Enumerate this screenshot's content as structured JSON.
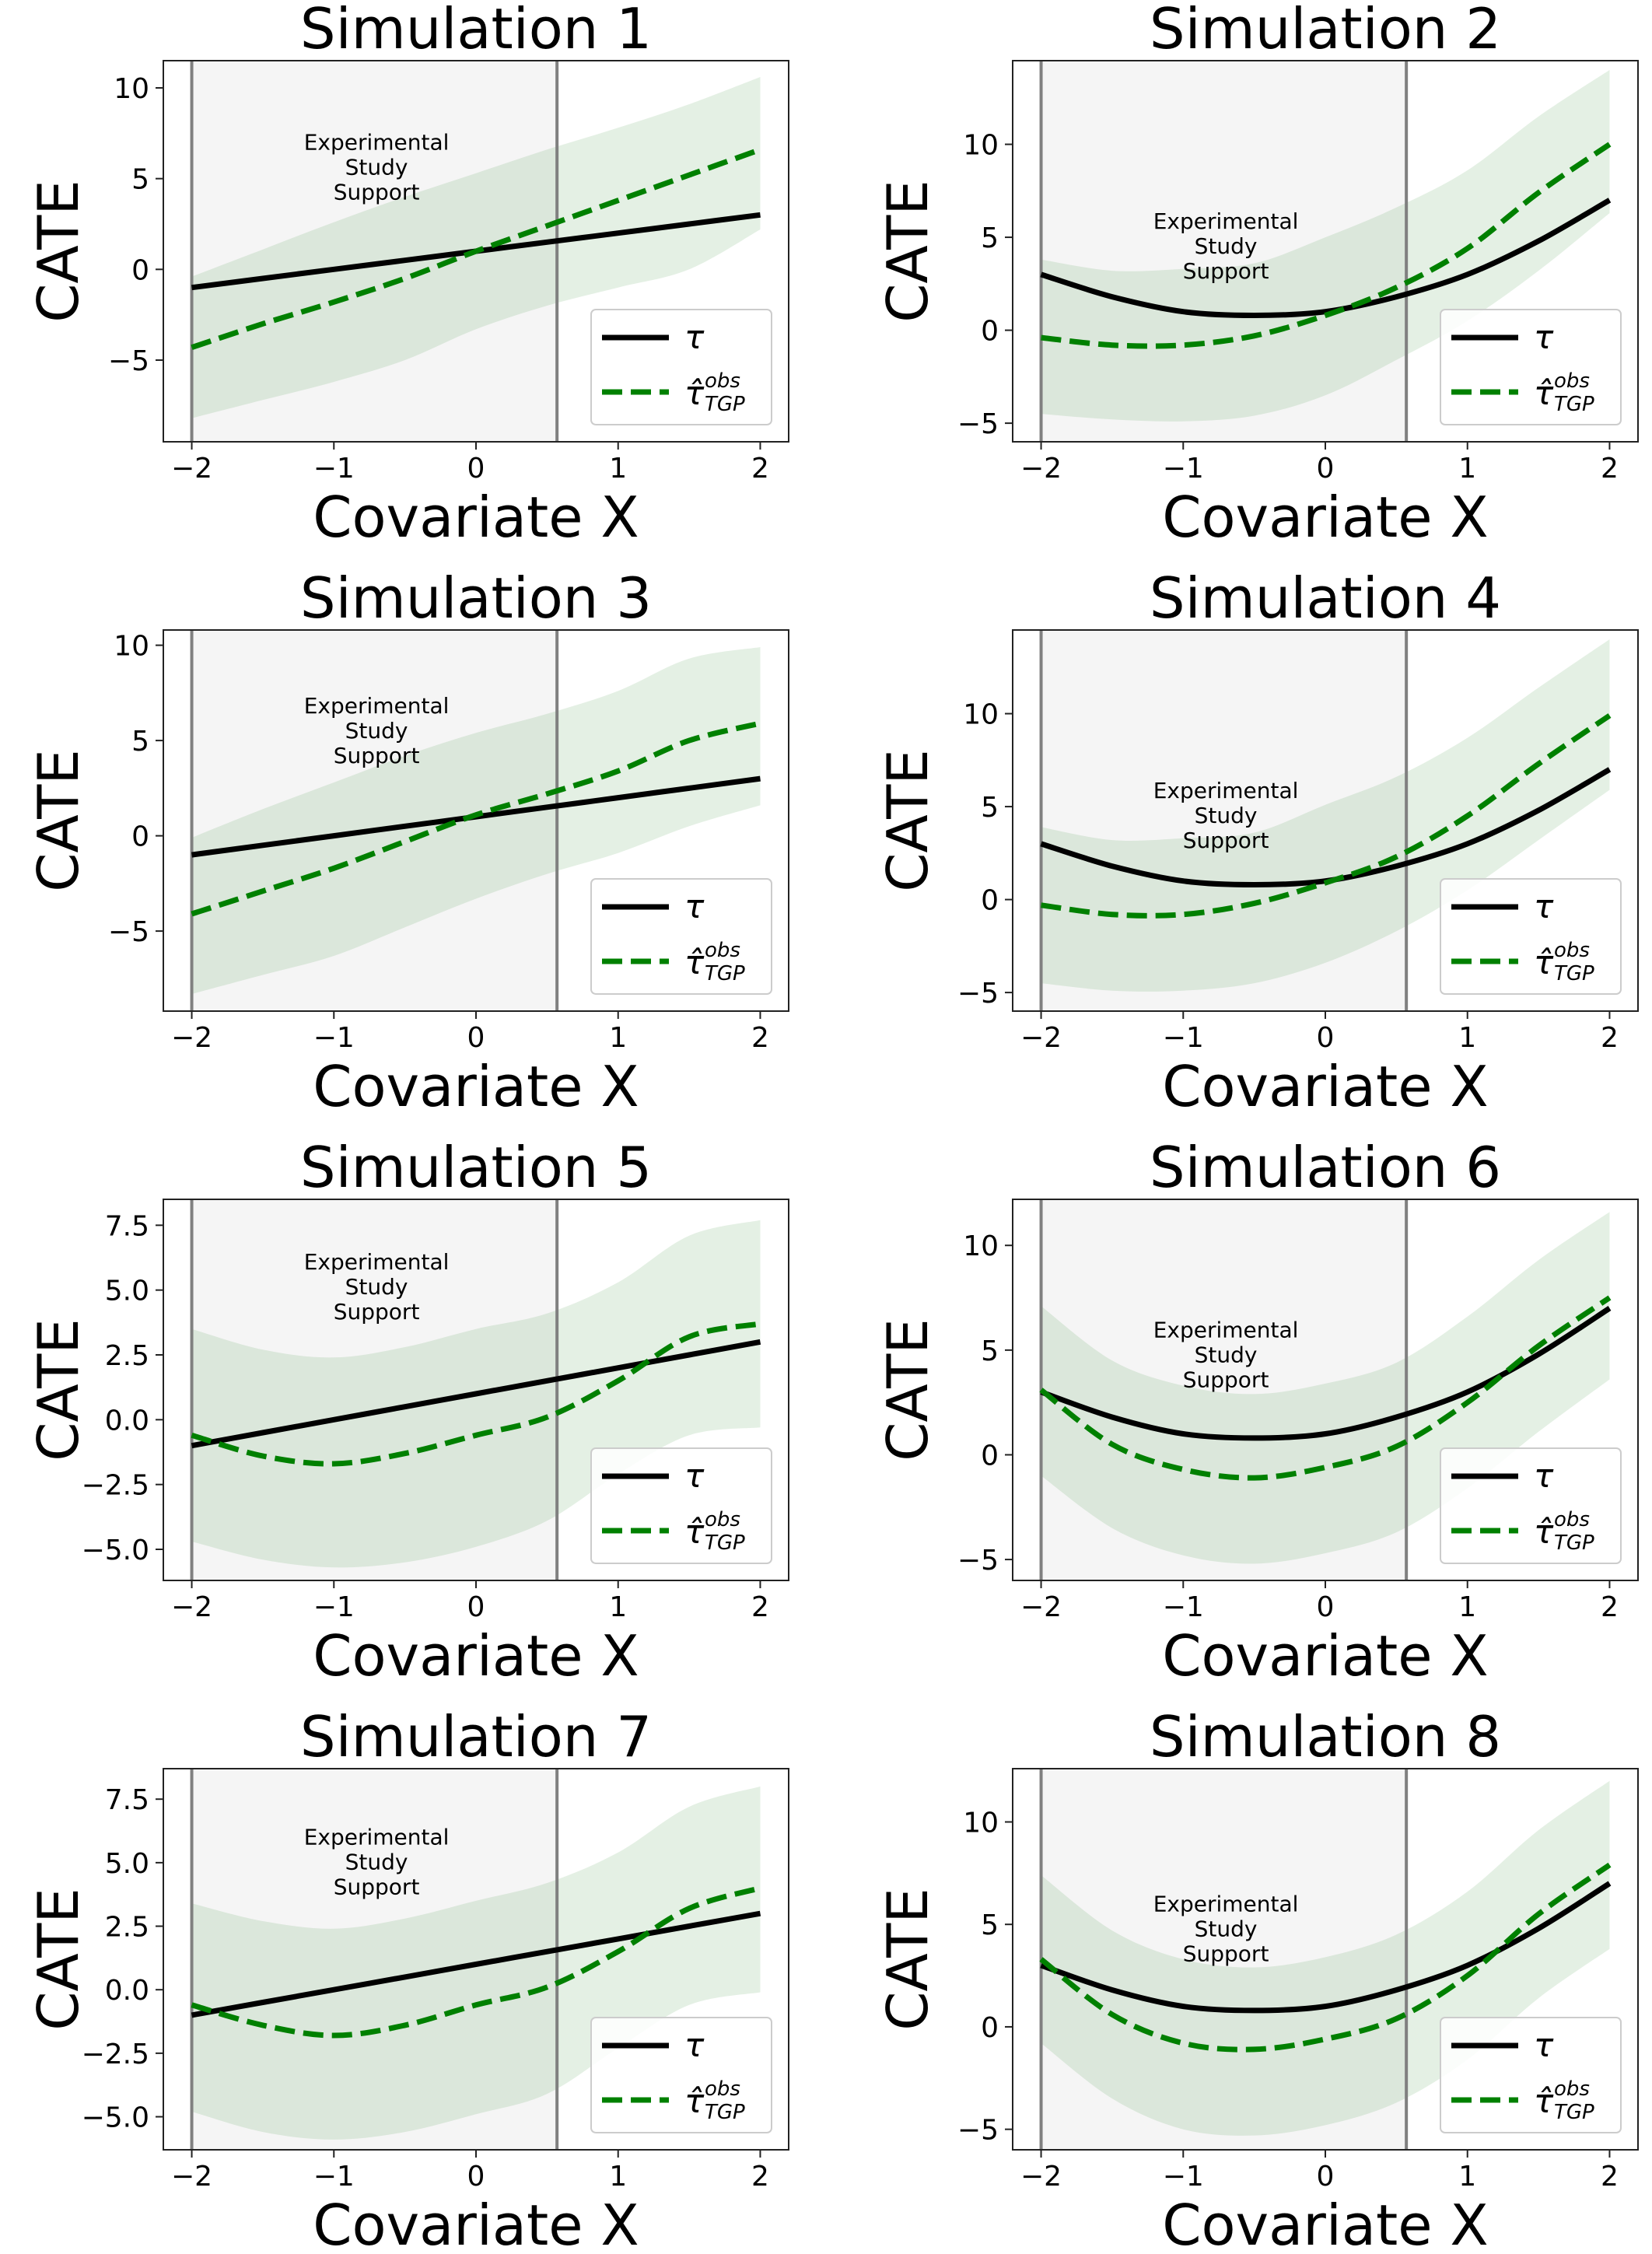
{
  "figure": {
    "colors": {
      "truth": "#000000",
      "estimate": "#008000",
      "band": "#2e8b2e",
      "support_shade": "#f5f5f5",
      "support_line": "#808080",
      "axis": "#222222",
      "legend_border": "#cccccc"
    }
  },
  "chart_data": [
    {
      "type": "line",
      "title": "Simulation 1",
      "xlabel": "Covariate X",
      "ylabel": "CATE",
      "xlim": [
        -2.2,
        2.2
      ],
      "ylim": [
        -9.5,
        11.5
      ],
      "xticks": [
        -2,
        -1,
        0,
        1,
        2
      ],
      "xtick_labels": [
        "−2",
        "−1",
        "0",
        "1",
        "2"
      ],
      "yticks": [
        -5,
        0,
        5,
        10
      ],
      "ytick_labels": [
        "−5",
        "0",
        "5",
        "10"
      ],
      "support_region": [
        -2,
        0.57
      ],
      "annotation": [
        "Experimental",
        "Study",
        "Support"
      ],
      "annotation_position": {
        "x": -0.7,
        "y": 5.3
      },
      "legend": {
        "placement": "lower-right",
        "entries": [
          "τ",
          "τ̂",
          "obs",
          "TGP"
        ]
      },
      "x": [
        -2,
        -1.5,
        -1,
        -0.5,
        0,
        0.5,
        1,
        1.5,
        2
      ],
      "series": [
        {
          "name": "τ",
          "style": "solid",
          "values": [
            -1,
            -0.5,
            0,
            0.5,
            1,
            1.5,
            2,
            2.5,
            3
          ]
        },
        {
          "name": "τ̂ obs TGP",
          "style": "dashed",
          "values": [
            -4.3,
            -3,
            -1.8,
            -0.5,
            1,
            2.4,
            3.8,
            5.2,
            6.6
          ]
        }
      ],
      "band_lower": [
        -8.2,
        -7.2,
        -6.2,
        -5,
        -3.3,
        -2,
        -1,
        0,
        2.2
      ],
      "band_upper": [
        -0.4,
        1.1,
        2.6,
        4,
        5.3,
        6.6,
        7.8,
        9.1,
        10.6
      ]
    },
    {
      "type": "line",
      "title": "Simulation 2",
      "xlabel": "Covariate X",
      "ylabel": "CATE",
      "xlim": [
        -2.2,
        2.2
      ],
      "ylim": [
        -6,
        14.5
      ],
      "xticks": [
        -2,
        -1,
        0,
        1,
        2
      ],
      "xtick_labels": [
        "−2",
        "−1",
        "0",
        "1",
        "2"
      ],
      "yticks": [
        -5,
        0,
        5,
        10
      ],
      "ytick_labels": [
        "−5",
        "0",
        "5",
        "10"
      ],
      "support_region": [
        -2,
        0.57
      ],
      "annotation": [
        "Experimental",
        "Study",
        "Support"
      ],
      "annotation_position": {
        "x": -0.7,
        "y": 4.2
      },
      "legend": {
        "placement": "lower-right",
        "entries": [
          "τ",
          "τ̂",
          "obs",
          "TGP"
        ]
      },
      "x": [
        -2,
        -1.5,
        -1,
        -0.5,
        0,
        0.5,
        1,
        1.5,
        2
      ],
      "series": [
        {
          "name": "τ",
          "style": "solid",
          "values": [
            3,
            1.8,
            1,
            0.8,
            1,
            1.8,
            3,
            4.8,
            7
          ]
        },
        {
          "name": "τ̂ obs TGP",
          "style": "dashed",
          "values": [
            -0.4,
            -0.8,
            -0.8,
            -0.3,
            0.8,
            2.3,
            4.4,
            7.4,
            10
          ]
        }
      ],
      "band_lower": [
        -4.5,
        -4.8,
        -4.9,
        -4.6,
        -3.5,
        -1.6,
        0.5,
        3.2,
        6.3
      ],
      "band_upper": [
        3.8,
        3.2,
        3.3,
        3.6,
        5,
        6.6,
        8.6,
        11.5,
        14
      ]
    },
    {
      "type": "line",
      "title": "Simulation 3",
      "xlabel": "Covariate X",
      "ylabel": "CATE",
      "xlim": [
        -2.2,
        2.2
      ],
      "ylim": [
        -9.2,
        10.8
      ],
      "xticks": [
        -2,
        -1,
        0,
        1,
        2
      ],
      "xtick_labels": [
        "−2",
        "−1",
        "0",
        "1",
        "2"
      ],
      "yticks": [
        -5,
        0,
        5,
        10
      ],
      "ytick_labels": [
        "−5",
        "0",
        "5",
        "10"
      ],
      "support_region": [
        -2,
        0.57
      ],
      "annotation": [
        "Experimental",
        "Study",
        "Support"
      ],
      "annotation_position": {
        "x": -0.7,
        "y": 5.2
      },
      "legend": {
        "placement": "lower-right",
        "entries": [
          "τ",
          "τ̂",
          "obs",
          "TGP"
        ]
      },
      "x": [
        -2,
        -1.5,
        -1,
        -0.5,
        0,
        0.5,
        1,
        1.5,
        2
      ],
      "series": [
        {
          "name": "τ",
          "style": "solid",
          "values": [
            -1,
            -0.5,
            0,
            0.5,
            1,
            1.5,
            2,
            2.5,
            3
          ]
        },
        {
          "name": "τ̂ obs TGP",
          "style": "dashed",
          "values": [
            -4.1,
            -2.9,
            -1.7,
            -0.3,
            1.1,
            2.2,
            3.4,
            5,
            5.9
          ]
        }
      ],
      "band_lower": [
        -8.3,
        -7.3,
        -6.3,
        -4.8,
        -3.3,
        -2,
        -0.9,
        0.5,
        1.6
      ],
      "band_upper": [
        -0.1,
        1.4,
        2.8,
        4.2,
        5.4,
        6.4,
        7.6,
        9.3,
        9.9
      ]
    },
    {
      "type": "line",
      "title": "Simulation 4",
      "xlabel": "Covariate X",
      "ylabel": "CATE",
      "xlim": [
        -2.2,
        2.2
      ],
      "ylim": [
        -6,
        14.5
      ],
      "xticks": [
        -2,
        -1,
        0,
        1,
        2
      ],
      "xtick_labels": [
        "−2",
        "−1",
        "0",
        "1",
        "2"
      ],
      "yticks": [
        -5,
        0,
        5,
        10
      ],
      "ytick_labels": [
        "−5",
        "0",
        "5",
        "10"
      ],
      "support_region": [
        -2,
        0.57
      ],
      "annotation": [
        "Experimental",
        "Study",
        "Support"
      ],
      "annotation_position": {
        "x": -0.7,
        "y": 4.2
      },
      "legend": {
        "placement": "lower-right",
        "entries": [
          "τ",
          "τ̂",
          "obs",
          "TGP"
        ]
      },
      "x": [
        -2,
        -1.5,
        -1,
        -0.5,
        0,
        0.5,
        1,
        1.5,
        2
      ],
      "series": [
        {
          "name": "τ",
          "style": "solid",
          "values": [
            3,
            1.8,
            1,
            0.8,
            1,
            1.8,
            3,
            4.8,
            7
          ]
        },
        {
          "name": "τ̂ obs TGP",
          "style": "dashed",
          "values": [
            -0.3,
            -0.8,
            -0.8,
            -0.2,
            0.9,
            2.3,
            4.5,
            7.3,
            9.9
          ]
        }
      ],
      "band_lower": [
        -4.5,
        -4.9,
        -4.9,
        -4.5,
        -3.4,
        -1.7,
        0.5,
        3.2,
        5.9
      ],
      "band_upper": [
        3.9,
        3.2,
        3.3,
        3.6,
        5.1,
        6.6,
        8.7,
        11.4,
        14
      ]
    },
    {
      "type": "line",
      "title": "Simulation 5",
      "xlabel": "Covariate X",
      "ylabel": "CATE",
      "xlim": [
        -2.2,
        2.2
      ],
      "ylim": [
        -6.2,
        8.5
      ],
      "xticks": [
        -2,
        -1,
        0,
        1,
        2
      ],
      "xtick_labels": [
        "−2",
        "−1",
        "0",
        "1",
        "2"
      ],
      "yticks": [
        -5,
        -2.5,
        0,
        2.5,
        5,
        7.5
      ],
      "ytick_labels": [
        "−5.0",
        "−2.5",
        "0.0",
        "2.5",
        "5.0",
        "7.5"
      ],
      "support_region": [
        -2,
        0.57
      ],
      "annotation": [
        "Experimental",
        "Study",
        "Support"
      ],
      "annotation_position": {
        "x": -0.7,
        "y": 4.9
      },
      "legend": {
        "placement": "lower-right",
        "entries": [
          "τ",
          "τ̂",
          "obs",
          "TGP"
        ]
      },
      "x": [
        -2,
        -1.5,
        -1,
        -0.5,
        0,
        0.5,
        1,
        1.5,
        2
      ],
      "series": [
        {
          "name": "τ",
          "style": "solid",
          "values": [
            -1,
            -0.5,
            0,
            0.5,
            1,
            1.5,
            2,
            2.5,
            3
          ]
        },
        {
          "name": "τ̂ obs TGP",
          "style": "dashed",
          "values": [
            -0.6,
            -1.4,
            -1.7,
            -1.3,
            -0.6,
            0.1,
            1.5,
            3.2,
            3.7
          ]
        }
      ],
      "band_lower": [
        -4.7,
        -5.4,
        -5.7,
        -5.5,
        -4.9,
        -3.9,
        -2.1,
        -0.6,
        -0.3
      ],
      "band_upper": [
        3.5,
        2.7,
        2.4,
        2.8,
        3.5,
        4.1,
        5.3,
        7.1,
        7.7
      ]
    },
    {
      "type": "line",
      "title": "Simulation 6",
      "xlabel": "Covariate X",
      "ylabel": "CATE",
      "xlim": [
        -2.2,
        2.2
      ],
      "ylim": [
        -6,
        12.2
      ],
      "xticks": [
        -2,
        -1,
        0,
        1,
        2
      ],
      "xtick_labels": [
        "−2",
        "−1",
        "0",
        "1",
        "2"
      ],
      "yticks": [
        -5,
        0,
        5,
        10
      ],
      "ytick_labels": [
        "−5",
        "0",
        "5",
        "10"
      ],
      "support_region": [
        -2,
        0.57
      ],
      "annotation": [
        "Experimental",
        "Study",
        "Support"
      ],
      "annotation_position": {
        "x": -0.7,
        "y": 4.5
      },
      "legend": {
        "placement": "lower-right",
        "entries": [
          "τ",
          "τ̂",
          "obs",
          "TGP"
        ]
      },
      "x": [
        -2,
        -1.5,
        -1,
        -0.5,
        0,
        0.5,
        1,
        1.5,
        2
      ],
      "series": [
        {
          "name": "τ",
          "style": "solid",
          "values": [
            3,
            1.8,
            1,
            0.8,
            1,
            1.8,
            3,
            4.8,
            7
          ]
        },
        {
          "name": "τ̂ obs TGP",
          "style": "dashed",
          "values": [
            3.1,
            0.5,
            -0.7,
            -1.1,
            -0.6,
            0.4,
            2.5,
            5.2,
            7.5
          ]
        }
      ],
      "band_lower": [
        -1,
        -3.5,
        -4.8,
        -5.2,
        -4.7,
        -3.7,
        -1.6,
        1.1,
        3.6
      ],
      "band_upper": [
        7.1,
        4.5,
        3.3,
        2.9,
        3.4,
        4.4,
        6.6,
        9.3,
        11.6
      ]
    },
    {
      "type": "line",
      "title": "Simulation 7",
      "xlabel": "Covariate X",
      "ylabel": "CATE",
      "xlim": [
        -2.2,
        2.2
      ],
      "ylim": [
        -6.3,
        8.7
      ],
      "xticks": [
        -2,
        -1,
        0,
        1,
        2
      ],
      "xtick_labels": [
        "−2",
        "−1",
        "0",
        "1",
        "2"
      ],
      "yticks": [
        -5,
        -2.5,
        0,
        2.5,
        5,
        7.5
      ],
      "ytick_labels": [
        "−5.0",
        "−2.5",
        "0.0",
        "2.5",
        "5.0",
        "7.5"
      ],
      "support_region": [
        -2,
        0.57
      ],
      "annotation": [
        "Experimental",
        "Study",
        "Support"
      ],
      "annotation_position": {
        "x": -0.7,
        "y": 4.8
      },
      "legend": {
        "placement": "lower-right",
        "entries": [
          "τ",
          "τ̂",
          "obs",
          "TGP"
        ]
      },
      "x": [
        -2,
        -1.5,
        -1,
        -0.5,
        0,
        0.5,
        1,
        1.5,
        2
      ],
      "series": [
        {
          "name": "τ",
          "style": "solid",
          "values": [
            -1,
            -0.5,
            0,
            0.5,
            1,
            1.5,
            2,
            2.5,
            3
          ]
        },
        {
          "name": "τ̂ obs TGP",
          "style": "dashed",
          "values": [
            -0.6,
            -1.4,
            -1.8,
            -1.4,
            -0.6,
            0.1,
            1.5,
            3.2,
            4
          ]
        }
      ],
      "band_lower": [
        -4.8,
        -5.6,
        -5.9,
        -5.6,
        -4.9,
        -4.1,
        -2.3,
        -0.6,
        -0.1
      ],
      "band_upper": [
        3.4,
        2.7,
        2.4,
        2.8,
        3.5,
        4.2,
        5.4,
        7.2,
        8
      ]
    },
    {
      "type": "line",
      "title": "Simulation 8",
      "xlabel": "Covariate X",
      "ylabel": "CATE",
      "xlim": [
        -2.2,
        2.2
      ],
      "ylim": [
        -6,
        12.6
      ],
      "xticks": [
        -2,
        -1,
        0,
        1,
        2
      ],
      "xtick_labels": [
        "−2",
        "−1",
        "0",
        "1",
        "2"
      ],
      "yticks": [
        -5,
        0,
        5,
        10
      ],
      "ytick_labels": [
        "−5",
        "0",
        "5",
        "10"
      ],
      "support_region": [
        -2,
        0.57
      ],
      "annotation": [
        "Experimental",
        "Study",
        "Support"
      ],
      "annotation_position": {
        "x": -0.7,
        "y": 4.5
      },
      "legend": {
        "placement": "lower-right",
        "entries": [
          "τ",
          "τ̂",
          "obs",
          "TGP"
        ]
      },
      "x": [
        -2,
        -1.5,
        -1,
        -0.5,
        0,
        0.5,
        1,
        1.5,
        2
      ],
      "series": [
        {
          "name": "τ",
          "style": "solid",
          "values": [
            3,
            1.8,
            1,
            0.8,
            1,
            1.8,
            3,
            4.8,
            7
          ]
        },
        {
          "name": "τ̂ obs TGP",
          "style": "dashed",
          "values": [
            3.3,
            0.6,
            -0.8,
            -1.1,
            -0.6,
            0.4,
            2.5,
            5.5,
            7.9
          ]
        }
      ],
      "band_lower": [
        -0.8,
        -3.5,
        -5,
        -5.3,
        -4.8,
        -3.7,
        -1.6,
        1.4,
        3.8
      ],
      "band_upper": [
        7.4,
        4.7,
        3.3,
        2.9,
        3.4,
        4.5,
        6.6,
        9.6,
        12
      ]
    }
  ]
}
